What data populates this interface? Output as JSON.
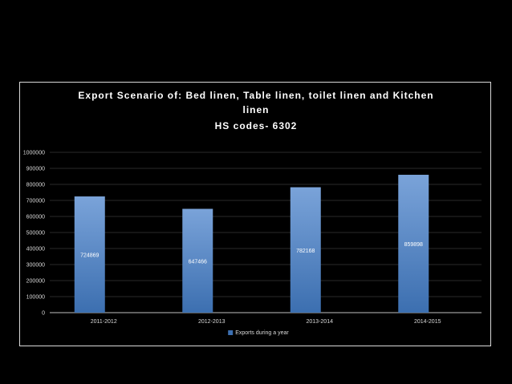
{
  "chart_data": {
    "type": "bar",
    "title_lines": [
      "Export Scenario of: Bed linen, Table linen, toilet linen and Kitchen",
      "linen",
      "HS codes- 6302"
    ],
    "categories": [
      "2011-2012",
      "2012-2013",
      "2013-2014",
      "2014-2015"
    ],
    "series": [
      {
        "name": "Exports during a year",
        "values": [
          724869,
          647466,
          782168,
          859898
        ]
      }
    ],
    "data_labels": [
      "724869",
      "647466",
      "782168",
      "859898"
    ],
    "yticks": [
      "0",
      "100000",
      "200000",
      "300000",
      "400000",
      "500000",
      "600000",
      "700000",
      "800000",
      "900000",
      "1000000"
    ],
    "ylim": [
      0,
      1000000
    ],
    "grid": true,
    "legend_position": "bottom",
    "colors": {
      "bar_top": "#7aa3d9",
      "bar_bottom": "#3c6fb0",
      "axis": "#bfbfbf",
      "text": "#d9d9d9",
      "label": "#ffffff"
    }
  }
}
